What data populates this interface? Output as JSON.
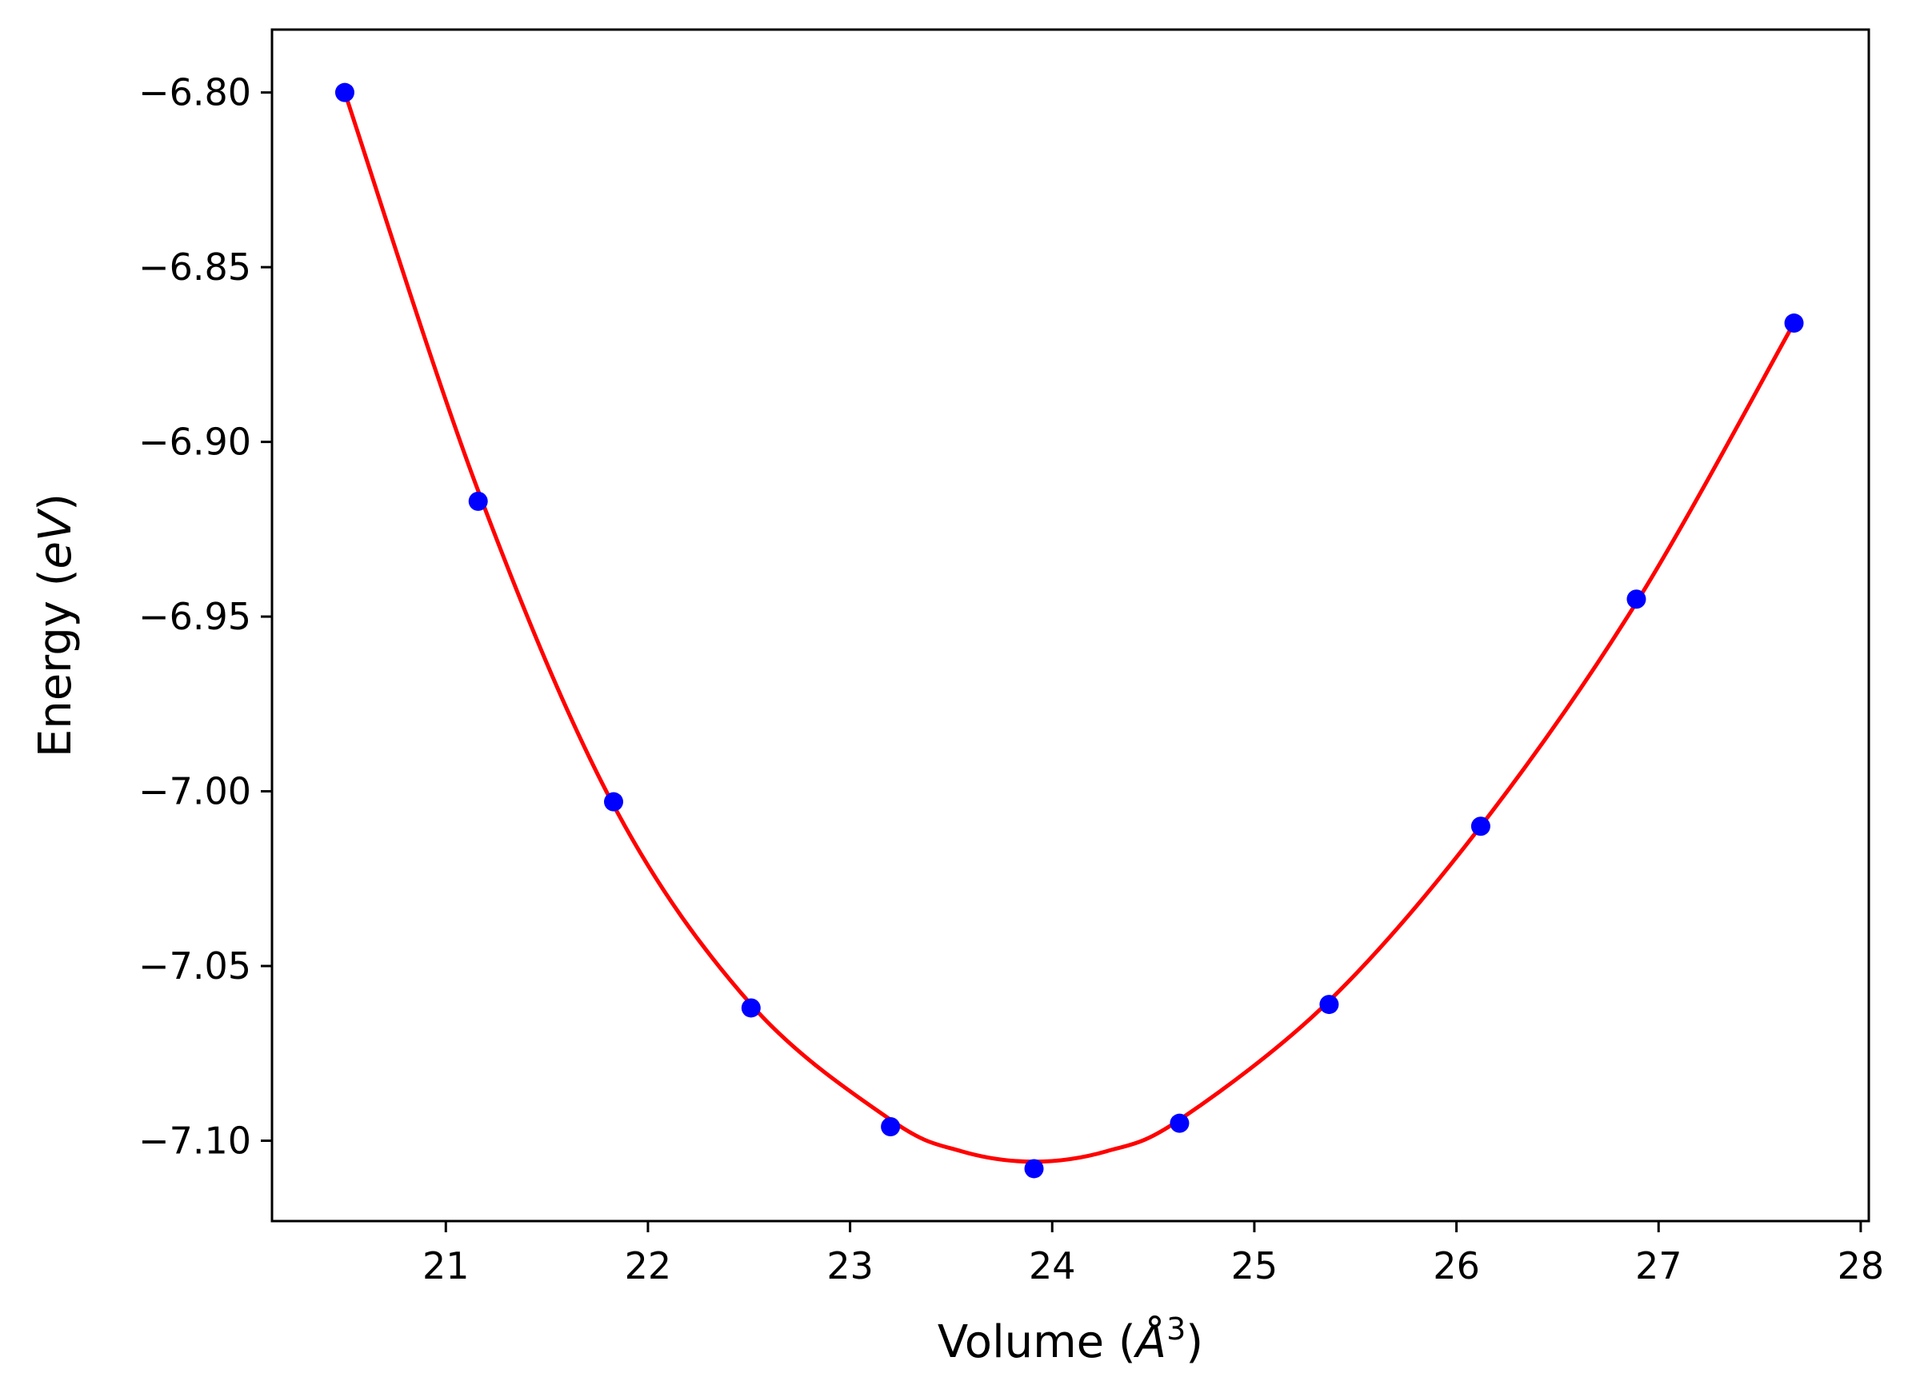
{
  "chart_data": {
    "type": "scatter",
    "title": "",
    "xlabel": "Volume ($\\AA^3$)",
    "xlabel_parts": {
      "pre": "Volume (",
      "var": "Å",
      "sup": "3",
      "post": ")"
    },
    "ylabel": "Energy ($eV$)",
    "ylabel_parts": {
      "pre": "Energy (",
      "var": "eV",
      "post": ")"
    },
    "xlim": [
      20.14,
      28.04
    ],
    "ylim": [
      -7.123,
      -6.782
    ],
    "xticks": [
      21,
      22,
      23,
      24,
      25,
      26,
      27,
      28
    ],
    "xtick_labels": [
      "21",
      "22",
      "23",
      "24",
      "25",
      "26",
      "27",
      "28"
    ],
    "yticks": [
      -6.8,
      -6.85,
      -6.9,
      -6.95,
      -7.0,
      -7.05,
      -7.1
    ],
    "ytick_labels": [
      "−6.80",
      "−6.85",
      "−6.90",
      "−6.95",
      "−7.00",
      "−7.05",
      "−7.10"
    ],
    "grid": false,
    "legend": "none",
    "series": [
      {
        "kind": "points",
        "color": "#0000ff",
        "x": [
          20.5,
          21.16,
          21.83,
          22.51,
          23.2,
          23.91,
          24.63,
          25.37,
          26.12,
          26.89,
          27.67
        ],
        "y": [
          -6.8,
          -6.917,
          -7.003,
          -7.062,
          -7.096,
          -7.108,
          -7.095,
          -7.061,
          -7.01,
          -6.945,
          -6.866
        ]
      },
      {
        "kind": "fit-line",
        "color": "#ff0000",
        "x": [
          20.5,
          21.16,
          21.83,
          22.51,
          23.2,
          23.55,
          23.91,
          24.27,
          24.63,
          25.37,
          26.12,
          26.89,
          27.67
        ],
        "y": [
          -6.8,
          -6.914,
          -7.004,
          -7.061,
          -7.094,
          -7.103,
          -7.106,
          -7.103,
          -7.094,
          -7.06,
          -7.01,
          -6.946,
          -6.866
        ]
      }
    ]
  }
}
